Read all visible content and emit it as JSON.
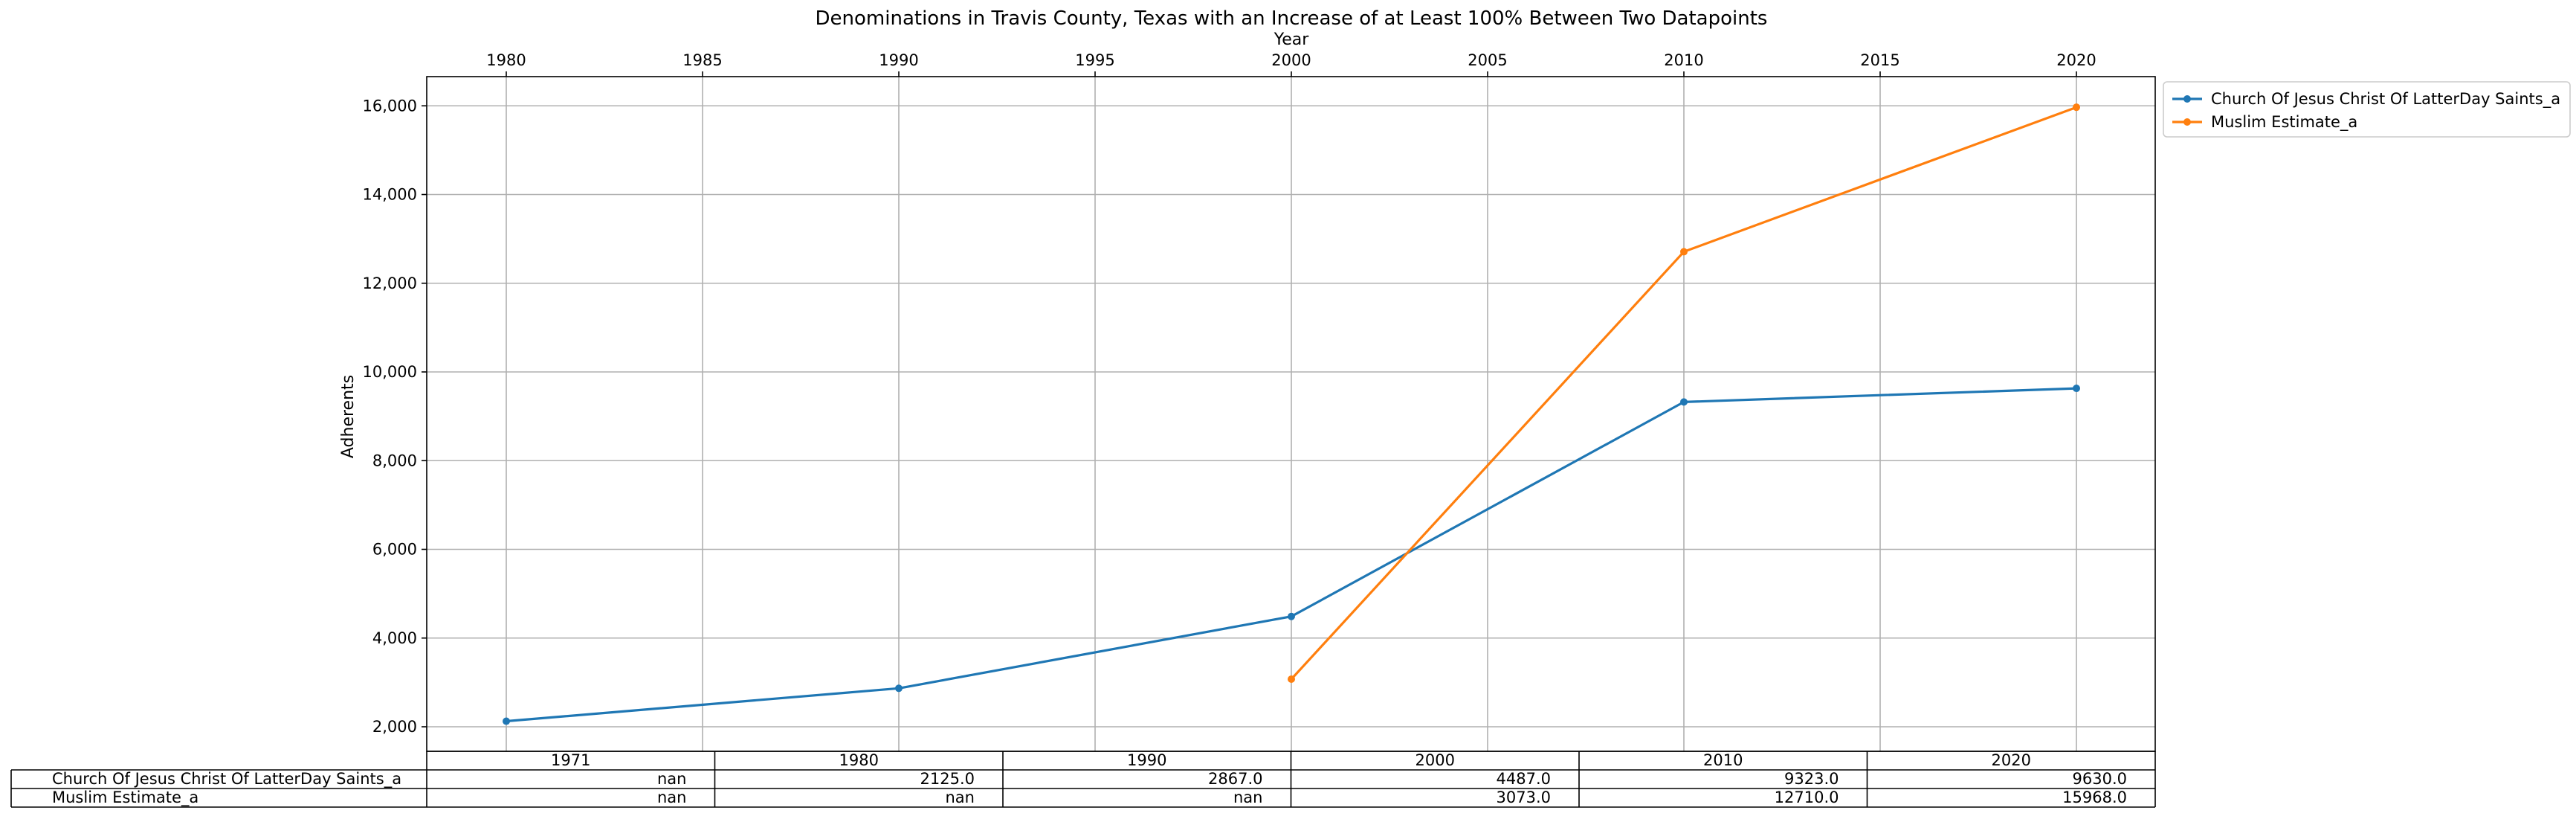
{
  "chart_data": {
    "type": "line",
    "title": "Denominations in Travis County, Texas with an Increase of at Least 100% Between Two Datapoints",
    "xlabel": "Year",
    "ylabel": "Adherents",
    "xlim": [
      1976,
      2022
    ],
    "ylim": [
      1500,
      16700
    ],
    "x_ticks": [
      1980,
      1985,
      1990,
      1995,
      2000,
      2005,
      2010,
      2015,
      2020
    ],
    "y_ticks": [
      2000,
      4000,
      6000,
      8000,
      10000,
      12000,
      14000,
      16000
    ],
    "x_tick_labels": [
      "1980",
      "1985",
      "1990",
      "1995",
      "2000",
      "2005",
      "2010",
      "2015",
      "2020"
    ],
    "y_tick_labels": [
      "2,000",
      "4,000",
      "6,000",
      "8,000",
      "10,000",
      "12,000",
      "14,000",
      "16,000"
    ],
    "grid": true,
    "legend_position": "outside-top-right",
    "series": [
      {
        "name": "Church Of Jesus Christ Of LatterDay Saints_a",
        "color": "#1f77b4",
        "x": [
          1980,
          1990,
          2000,
          2010,
          2020
        ],
        "y": [
          2125,
          2867,
          4487,
          9323,
          9630
        ]
      },
      {
        "name": "Muslim Estimate_a",
        "color": "#ff7f0e",
        "x": [
          2000,
          2010,
          2020
        ],
        "y": [
          3073,
          12710,
          15968
        ]
      }
    ],
    "table": {
      "columns": [
        "1971",
        "1980",
        "1990",
        "2000",
        "2010",
        "2020"
      ],
      "rows": [
        {
          "label": "Church Of Jesus Christ Of LatterDay Saints_a",
          "cells": [
            "nan",
            "2125.0",
            "2867.0",
            "4487.0",
            "9323.0",
            "9630.0"
          ]
        },
        {
          "label": "Muslim Estimate_a",
          "cells": [
            "nan",
            "nan",
            "nan",
            "3073.0",
            "12710.0",
            "15968.0"
          ]
        }
      ]
    }
  }
}
